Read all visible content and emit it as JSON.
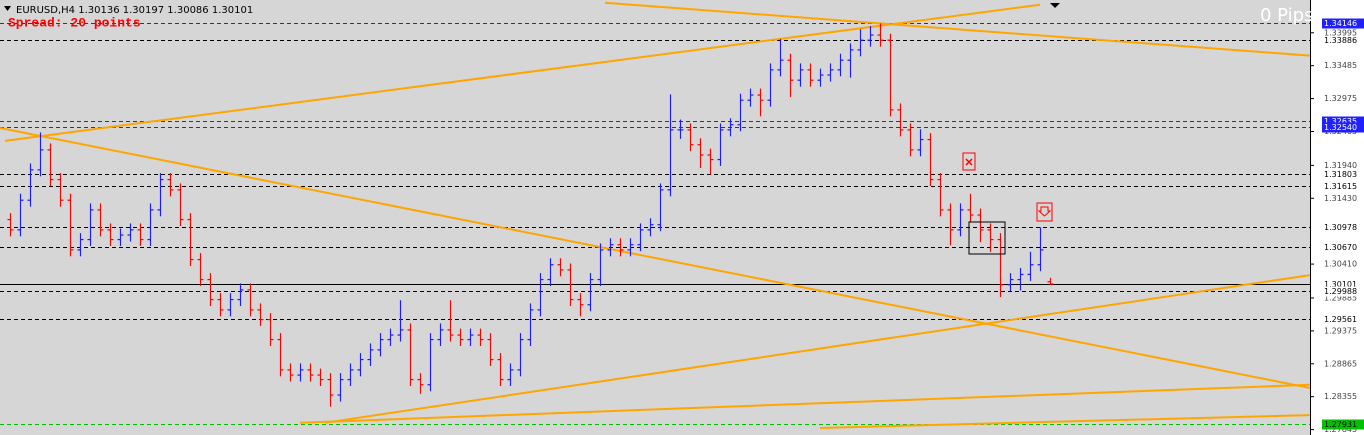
{
  "chart_data": {
    "type": "ohlc",
    "title": "EURUSD,H4",
    "spread_text": "Spread: 20 points",
    "pips_text": "0 Pips",
    "up_color": "#1c1cff",
    "down_color": "#ff0000",
    "xlim": [
      -1,
      130
    ],
    "ylim": [
      1.27761,
      1.34503
    ],
    "yticks": [
      1.33995,
      1.33485,
      1.32975,
      1.32465,
      {
        "value": 1.3194,
        "label": "1.31940"
      },
      {
        "value": 1.3143,
        "label": "1.31430"
      },
      {
        "value": 1.3041,
        "label": "1.30410"
      },
      1.29885,
      1.29375,
      1.28865,
      1.28355,
      1.27845
    ],
    "open": [
      1.311,
      1.3094,
      1.314,
      1.3187,
      1.3218,
      1.3172,
      1.314,
      1.3063,
      1.3079,
      1.3125,
      1.3094,
      1.3079,
      1.3086,
      1.3094,
      1.3079,
      1.3125,
      1.3172,
      1.3156,
      1.311,
      1.3048,
      1.3017,
      1.2986,
      1.297,
      1.2986,
      1.3001,
      1.297,
      1.2955,
      1.2924,
      1.2877,
      1.2869,
      1.2877,
      1.2869,
      1.2862,
      1.2838,
      1.2862,
      1.2877,
      1.2893,
      1.2908,
      1.2924,
      1.2931,
      1.2939,
      1.2862,
      1.2854,
      1.2924,
      1.2939,
      1.2931,
      1.2924,
      1.2931,
      1.2924,
      1.2893,
      1.2862,
      1.2877,
      1.2924,
      1.297,
      1.3017,
      1.304,
      1.3032,
      1.2986,
      1.2978,
      1.3017,
      1.3063,
      1.3071,
      1.3063,
      1.3071,
      1.3094,
      1.3102,
      1.3156,
      1.3249,
      1.3249,
      1.3226,
      1.321,
      1.3203,
      1.3249,
      1.3257,
      1.3295,
      1.3303,
      1.3295,
      1.3342,
      1.3357,
      1.3326,
      1.3342,
      1.3326,
      1.3334,
      1.3342,
      1.3357,
      1.3373,
      1.3388,
      1.3396,
      1.3388,
      1.328,
      1.3249,
      1.3218,
      1.3234,
      1.3172,
      1.3125,
      1.3094,
      1.3125,
      1.3117,
      1.3094,
      1.3079,
      1.3009,
      1.3017,
      1.3025,
      1.304,
      1.30136
    ],
    "high": [
      1.312,
      1.315,
      1.3197,
      1.3245,
      1.3228,
      1.3182,
      1.315,
      1.3089,
      1.3135,
      1.3135,
      1.3104,
      1.3096,
      1.3104,
      1.3104,
      1.3135,
      1.3182,
      1.3182,
      1.3166,
      1.312,
      1.3058,
      1.3027,
      1.2996,
      1.2996,
      1.3011,
      1.3011,
      1.298,
      1.2965,
      1.2934,
      1.2887,
      1.2887,
      1.2887,
      1.2879,
      1.2872,
      1.2872,
      1.2887,
      1.2903,
      1.2918,
      1.2934,
      1.2941,
      1.2985,
      1.2949,
      1.2872,
      1.2934,
      1.2949,
      1.2985,
      1.2941,
      1.2941,
      1.2941,
      1.2934,
      1.2903,
      1.2887,
      1.2934,
      1.298,
      1.3027,
      1.305,
      1.305,
      1.3042,
      1.2996,
      1.3027,
      1.3073,
      1.3081,
      1.3081,
      1.3081,
      1.3104,
      1.3112,
      1.3166,
      1.3304,
      1.3265,
      1.3259,
      1.3236,
      1.322,
      1.3259,
      1.3267,
      1.3305,
      1.3313,
      1.3313,
      1.3352,
      1.339,
      1.3367,
      1.3352,
      1.3352,
      1.3344,
      1.3352,
      1.3367,
      1.3383,
      1.3405,
      1.341,
      1.3414,
      1.3398,
      1.329,
      1.3259,
      1.325,
      1.3244,
      1.3182,
      1.3135,
      1.3135,
      1.315,
      1.3127,
      1.3104,
      1.3089,
      1.3027,
      1.3035,
      1.306,
      1.3098,
      1.30197
    ],
    "low": [
      1.3084,
      1.3084,
      1.313,
      1.3177,
      1.3162,
      1.313,
      1.3053,
      1.3053,
      1.3069,
      1.3084,
      1.3069,
      1.3069,
      1.3076,
      1.3069,
      1.3069,
      1.3115,
      1.3146,
      1.31,
      1.3038,
      1.3007,
      1.2976,
      1.296,
      1.296,
      1.2976,
      1.296,
      1.2945,
      1.2914,
      1.2867,
      1.2859,
      1.2859,
      1.2859,
      1.2852,
      1.282,
      1.2828,
      1.2852,
      1.2867,
      1.2883,
      1.2898,
      1.2914,
      1.2921,
      1.2852,
      1.284,
      1.2844,
      1.2914,
      1.2921,
      1.2914,
      1.2914,
      1.2914,
      1.2883,
      1.2852,
      1.2852,
      1.2867,
      1.2914,
      1.296,
      1.3007,
      1.3022,
      1.2976,
      1.296,
      1.2968,
      1.3007,
      1.3053,
      1.3053,
      1.3053,
      1.3061,
      1.3084,
      1.3092,
      1.3146,
      1.3235,
      1.3216,
      1.319,
      1.318,
      1.3193,
      1.3239,
      1.3247,
      1.3285,
      1.327,
      1.3285,
      1.3332,
      1.33,
      1.3316,
      1.3316,
      1.3316,
      1.3324,
      1.3332,
      1.333,
      1.3363,
      1.3378,
      1.3378,
      1.327,
      1.3239,
      1.3208,
      1.3208,
      1.3162,
      1.3115,
      1.307,
      1.3084,
      1.3107,
      1.3075,
      1.306,
      1.299,
      1.2999,
      1.3,
      1.3015,
      1.303,
      1.30086
    ],
    "close": [
      1.3094,
      1.314,
      1.3187,
      1.3218,
      1.3172,
      1.314,
      1.3063,
      1.3079,
      1.3125,
      1.3094,
      1.3079,
      1.3086,
      1.3094,
      1.3079,
      1.3125,
      1.3172,
      1.3156,
      1.311,
      1.3048,
      1.3017,
      1.2986,
      1.297,
      1.2986,
      1.3001,
      1.297,
      1.2955,
      1.2924,
      1.2877,
      1.2869,
      1.2877,
      1.2869,
      1.2862,
      1.2838,
      1.2862,
      1.2877,
      1.2893,
      1.2908,
      1.2924,
      1.2931,
      1.2939,
      1.2862,
      1.2854,
      1.2924,
      1.2939,
      1.2931,
      1.2924,
      1.2931,
      1.2924,
      1.2893,
      1.2862,
      1.2877,
      1.2924,
      1.297,
      1.3017,
      1.304,
      1.3032,
      1.2986,
      1.2978,
      1.3017,
      1.3063,
      1.3071,
      1.3063,
      1.3071,
      1.3094,
      1.3102,
      1.3156,
      1.3249,
      1.3249,
      1.3226,
      1.321,
      1.3203,
      1.3249,
      1.3257,
      1.3295,
      1.3303,
      1.3295,
      1.3342,
      1.3357,
      1.3326,
      1.3342,
      1.3326,
      1.3334,
      1.3342,
      1.3357,
      1.3373,
      1.3388,
      1.3396,
      1.3388,
      1.328,
      1.3249,
      1.3218,
      1.3234,
      1.3172,
      1.3125,
      1.3094,
      1.3125,
      1.3117,
      1.3094,
      1.3079,
      1.3009,
      1.3017,
      1.3025,
      1.304,
      1.3063,
      1.30101
    ],
    "levels": [
      {
        "price": 1.34146,
        "color": "#2020ff",
        "dash": "4,3",
        "label_fill": "#2020ff",
        "label_text": "#ffffff"
      },
      {
        "price": 1.33886,
        "color": "#000000",
        "dash": "4,3",
        "label_fill": "#ffffff",
        "label_text": "#000000"
      },
      {
        "price": 1.32635,
        "color": "#2020ff",
        "dash": "4,3",
        "label_fill": "#2020ff",
        "label_text": "#ffffff"
      },
      {
        "price": {
          "value": 1.3254,
          "label": "1.32540"
        },
        "color": "#2020ff",
        "dash": "4,3",
        "label_fill": "#2020ff",
        "label_text": "#ffffff"
      },
      {
        "price": 1.31803,
        "color": "#000000",
        "dash": "4,3",
        "label_fill": "#ffffff",
        "label_text": "#000000"
      },
      {
        "price": 1.31615,
        "color": "#000000",
        "dash": "4,3",
        "label_fill": "#ffffff",
        "label_text": "#000000"
      },
      {
        "price": 1.30978,
        "color": "#000000",
        "dash": "4,3",
        "label_fill": "#ffffff",
        "label_text": "#000000"
      },
      {
        "price": {
          "value": 1.3067,
          "label": "1.30670"
        },
        "color": "#000000",
        "dash": "4,3",
        "label_fill": "#ffffff",
        "label_text": "#000000"
      },
      {
        "price": 1.30101,
        "color": "#000000",
        "dash": "none",
        "label_fill": "#ffffff",
        "label_text": "#000000"
      },
      {
        "price": 1.29988,
        "color": "#000000",
        "dash": "4,3",
        "label_fill": "#ffffff",
        "label_text": "#000000"
      },
      {
        "price": 1.29561,
        "color": "#000000",
        "dash": "4,3",
        "label_fill": "#ffffff",
        "label_text": "#000000"
      },
      {
        "price": 1.27931,
        "color": "#00c000",
        "dash": "4,3",
        "label_fill": "#00c000",
        "label_text": "#000000"
      }
    ],
    "trendlines": [
      {
        "x": [
          -0.5,
          103
        ],
        "y": [
          1.3232,
          1.3443
        ],
        "color": "#ffa500"
      },
      {
        "x": [
          59.5,
          130
        ],
        "y": [
          1.3446,
          1.3364
        ],
        "color": "#ffa500"
      },
      {
        "x": [
          -1,
          130
        ],
        "y": [
          1.3252,
          1.2849
        ],
        "color": "#ffa500"
      },
      {
        "x": [
          31.5,
          130
        ],
        "y": [
          1.2795,
          1.3024
        ],
        "color": "#ffa500"
      },
      {
        "x": [
          29,
          130
        ],
        "y": [
          1.2795,
          1.2854
        ],
        "color": "#ffa500"
      },
      {
        "x": [
          81,
          130
        ],
        "y": [
          1.2787,
          1.2807
        ],
        "color": "#ffa500"
      }
    ]
  }
}
